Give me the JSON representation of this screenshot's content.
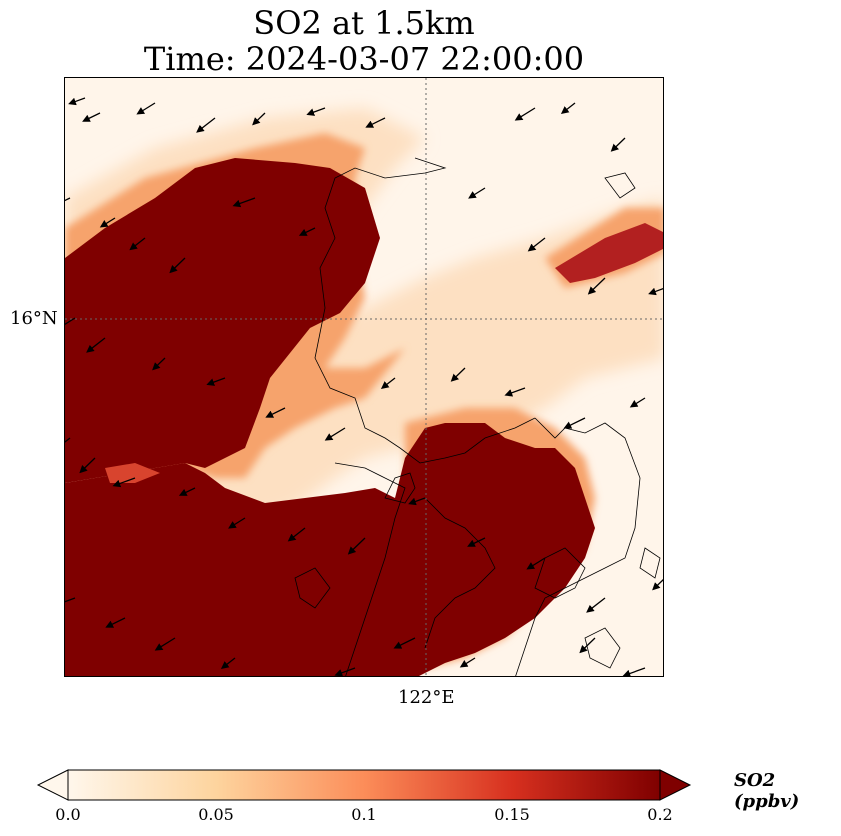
{
  "title_line1": "SO2 at 1.5km",
  "title_line2": "Time: 2024-03-07 22:00:00",
  "map": {
    "lat_tick_label": "16°N",
    "lon_tick_label": "122°E",
    "gridline_style": "dotted",
    "field_colors": {
      "background": "#fff5ea",
      "light": "#fde0c2",
      "mid": "#f6a36c",
      "strong": "#d8442e",
      "max": "#7f0000"
    }
  },
  "colorbar": {
    "label": "SO2 (ppbv)",
    "ticks": [
      "0.0",
      "0.05",
      "0.1",
      "0.15",
      "0.2"
    ],
    "range": [
      0.0,
      0.2
    ],
    "extend": "both",
    "colormap": "OrRd"
  },
  "wind_arrows": [
    [
      20,
      20
    ],
    [
      35,
      35
    ],
    [
      90,
      25
    ],
    [
      150,
      40
    ],
    [
      200,
      35
    ],
    [
      260,
      30
    ],
    [
      320,
      40
    ],
    [
      470,
      30
    ],
    [
      510,
      25
    ],
    [
      560,
      60
    ],
    [
      620,
      70
    ],
    [
      5,
      120
    ],
    [
      50,
      140
    ],
    [
      80,
      160
    ],
    [
      120,
      180
    ],
    [
      190,
      120
    ],
    [
      250,
      150
    ],
    [
      420,
      110
    ],
    [
      480,
      160
    ],
    [
      540,
      200
    ],
    [
      600,
      210
    ],
    [
      640,
      200
    ],
    [
      10,
      240
    ],
    [
      40,
      260
    ],
    [
      100,
      280
    ],
    [
      160,
      300
    ],
    [
      220,
      330
    ],
    [
      280,
      350
    ],
    [
      330,
      300
    ],
    [
      400,
      290
    ],
    [
      460,
      310
    ],
    [
      520,
      340
    ],
    [
      580,
      320
    ],
    [
      5,
      360
    ],
    [
      30,
      380
    ],
    [
      70,
      400
    ],
    [
      130,
      410
    ],
    [
      180,
      440
    ],
    [
      240,
      450
    ],
    [
      300,
      460
    ],
    [
      360,
      420
    ],
    [
      420,
      460
    ],
    [
      480,
      480
    ],
    [
      540,
      520
    ],
    [
      600,
      500
    ],
    [
      10,
      520
    ],
    [
      60,
      540
    ],
    [
      110,
      560
    ],
    [
      170,
      580
    ],
    [
      230,
      600
    ],
    [
      290,
      590
    ],
    [
      350,
      560
    ],
    [
      410,
      580
    ],
    [
      470,
      600
    ],
    [
      530,
      560
    ],
    [
      580,
      590
    ],
    [
      20,
      600
    ],
    [
      80,
      620
    ],
    [
      140,
      640
    ],
    [
      200,
      660
    ],
    [
      260,
      640
    ],
    [
      320,
      630
    ],
    [
      380,
      660
    ],
    [
      440,
      650
    ],
    [
      500,
      630
    ],
    [
      560,
      620
    ],
    [
      620,
      640
    ]
  ]
}
